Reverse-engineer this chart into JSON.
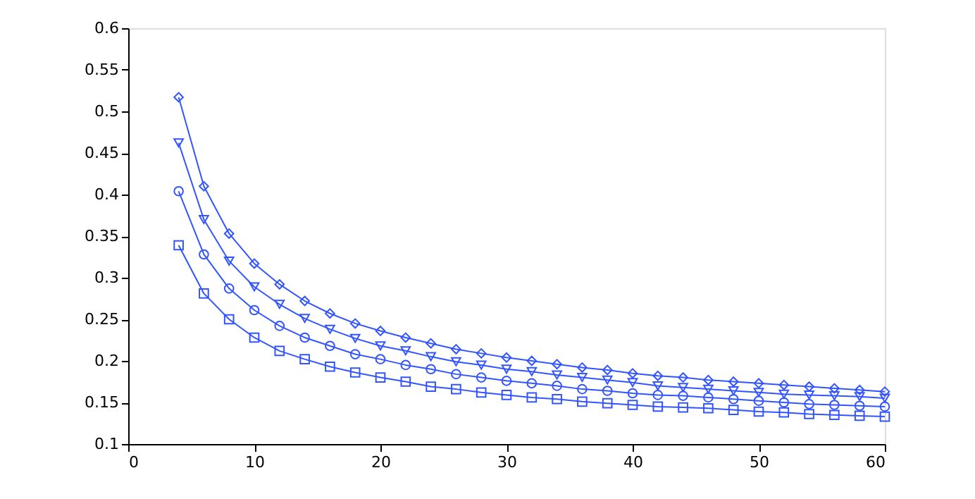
{
  "chart_data": {
    "type": "line",
    "x": [
      4,
      6,
      8,
      10,
      12,
      14,
      16,
      18,
      20,
      22,
      24,
      26,
      28,
      30,
      32,
      34,
      36,
      38,
      40,
      42,
      44,
      46,
      48,
      50,
      52,
      54,
      56,
      58,
      60
    ],
    "series": [
      {
        "color": "#3355ff",
        "marker": "diamond",
        "values": [
          0.517,
          0.41,
          0.353,
          0.317,
          0.292,
          0.272,
          0.257,
          0.245,
          0.236,
          0.228,
          0.221,
          0.214,
          0.209,
          0.204,
          0.2,
          0.196,
          0.192,
          0.189,
          0.185,
          0.182,
          0.18,
          0.177,
          0.175,
          0.173,
          0.171,
          0.169,
          0.167,
          0.165,
          0.163
        ]
      },
      {
        "color": "#3355ff",
        "marker": "triangle",
        "values": [
          0.462,
          0.37,
          0.32,
          0.289,
          0.268,
          0.251,
          0.238,
          0.227,
          0.218,
          0.212,
          0.205,
          0.199,
          0.195,
          0.19,
          0.187,
          0.183,
          0.18,
          0.177,
          0.174,
          0.17,
          0.168,
          0.166,
          0.164,
          0.162,
          0.16,
          0.159,
          0.158,
          0.157,
          0.155
        ]
      },
      {
        "color": "#3355ff",
        "marker": "circle",
        "values": [
          0.404,
          0.328,
          0.287,
          0.261,
          0.242,
          0.228,
          0.218,
          0.208,
          0.202,
          0.195,
          0.19,
          0.184,
          0.18,
          0.176,
          0.173,
          0.17,
          0.166,
          0.164,
          0.161,
          0.159,
          0.158,
          0.156,
          0.154,
          0.152,
          0.15,
          0.148,
          0.147,
          0.146,
          0.145
        ]
      },
      {
        "color": "#3355ff",
        "marker": "square",
        "values": [
          0.339,
          0.281,
          0.25,
          0.228,
          0.212,
          0.202,
          0.193,
          0.186,
          0.18,
          0.175,
          0.169,
          0.166,
          0.162,
          0.159,
          0.156,
          0.154,
          0.151,
          0.149,
          0.147,
          0.145,
          0.144,
          0.143,
          0.141,
          0.139,
          0.138,
          0.136,
          0.135,
          0.134,
          0.133
        ]
      }
    ],
    "xlim": [
      0,
      60
    ],
    "xticks": [
      0,
      10,
      20,
      30,
      40,
      50,
      60
    ],
    "ylim": [
      0.1,
      0.6
    ],
    "yticks": [
      0.1,
      0.15,
      0.2,
      0.25,
      0.3,
      0.35,
      0.4,
      0.45,
      0.5,
      0.55,
      0.6
    ],
    "grid": false,
    "line_style": "solid"
  }
}
